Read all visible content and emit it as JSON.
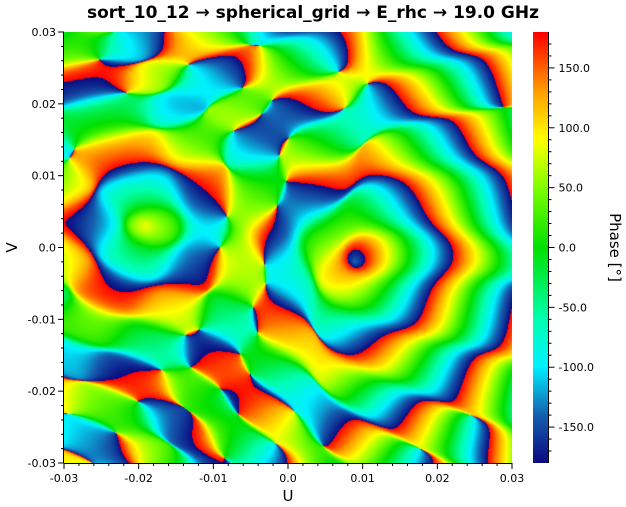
{
  "title": "sort_10_12 → spherical_grid → E_rhc → 19.0 GHz",
  "chart_data": {
    "type": "heatmap",
    "title": "sort_10_12 → spherical_grid → E_rhc → 19.0 GHz",
    "xlabel": "U",
    "ylabel": "V",
    "colorbar_label": "Phase [°]",
    "xlim": [
      -0.03,
      0.03
    ],
    "ylim": [
      -0.03,
      0.03
    ],
    "clim": [
      -180,
      180
    ],
    "xticks": [
      "-0.03",
      "-0.02",
      "-0.01",
      "0.0",
      "0.01",
      "0.02",
      "0.03"
    ],
    "xtick_values": [
      -0.03,
      -0.02,
      -0.01,
      0.0,
      0.01,
      0.02,
      0.03
    ],
    "yticks": [
      "0.03",
      "0.02",
      "0.01",
      "0.0",
      "-0.01",
      "-0.02",
      "-0.03"
    ],
    "ytick_values": [
      0.03,
      0.02,
      0.01,
      0.0,
      -0.01,
      -0.02,
      -0.03
    ],
    "cticks": [
      "150.0",
      "100.0",
      "50.0",
      "0.0",
      "-50.0",
      "-100.0",
      "-150.0"
    ],
    "ctick_values": [
      150,
      100,
      50,
      0,
      -50,
      -100,
      -150
    ],
    "colormap": [
      [
        -180,
        "#0b0b80"
      ],
      [
        -140,
        "#1560b0"
      ],
      [
        -100,
        "#00f0ff"
      ],
      [
        -60,
        "#00ffb0"
      ],
      [
        0,
        "#00e000"
      ],
      [
        50,
        "#80ff00"
      ],
      [
        90,
        "#ffff00"
      ],
      [
        130,
        "#ffa000"
      ],
      [
        180,
        "#ff0000"
      ]
    ],
    "phase_features": [
      {
        "name": "left ring center",
        "u": -0.019,
        "v": 0.003,
        "phase_deg": 80,
        "ring_period": 0.013
      },
      {
        "name": "right ring center",
        "u": 0.009,
        "v": -0.002,
        "phase_deg": -150,
        "ring_period": 0.011
      }
    ]
  }
}
